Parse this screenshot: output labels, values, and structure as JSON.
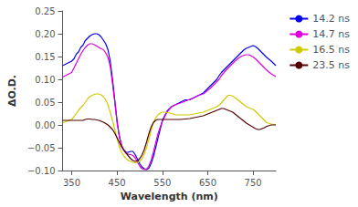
{
  "chart_data": {
    "type": "line",
    "xlabel": "Wavelength (nm)",
    "ylabel": "ΔO.D.",
    "xlim": [
      330,
      800
    ],
    "ylim": [
      -0.1,
      0.25
    ],
    "xticks": [
      350,
      450,
      550,
      650,
      750
    ],
    "yticks": [
      {
        "value": -0.1,
        "label": "−0.10"
      },
      {
        "value": -0.05,
        "label": "−0.05"
      },
      {
        "value": 0.0,
        "label": "0.00"
      },
      {
        "value": 0.05,
        "label": "0.05"
      },
      {
        "value": 0.1,
        "label": "0.10"
      },
      {
        "value": 0.15,
        "label": "0.15"
      },
      {
        "value": 0.2,
        "label": "0.20"
      },
      {
        "value": 0.25,
        "label": "0.25"
      }
    ],
    "grid": false,
    "legend": "upper right",
    "x": [
      330,
      340,
      350,
      355,
      360,
      365,
      370,
      375,
      380,
      385,
      390,
      395,
      400,
      405,
      410,
      415,
      420,
      425,
      430,
      435,
      440,
      445,
      450,
      455,
      460,
      465,
      470,
      475,
      480,
      485,
      490,
      495,
      500,
      505,
      510,
      515,
      520,
      525,
      530,
      535,
      540,
      545,
      550,
      555,
      560,
      565,
      570,
      580,
      590,
      600,
      610,
      620,
      630,
      640,
      645,
      650,
      655,
      660,
      665,
      670,
      675,
      680,
      685,
      690,
      695,
      700,
      705,
      710,
      715,
      720,
      725,
      730,
      735,
      740,
      745,
      750,
      755,
      760,
      765,
      770,
      775,
      780,
      790,
      800
    ],
    "series": [
      {
        "name": "14.2 ns",
        "color": "#0000EE",
        "values": [
          0.13,
          0.135,
          0.14,
          0.145,
          0.155,
          0.16,
          0.17,
          0.175,
          0.185,
          0.19,
          0.195,
          0.198,
          0.2,
          0.2,
          0.198,
          0.193,
          0.186,
          0.178,
          0.165,
          0.14,
          0.1,
          0.055,
          0.01,
          -0.025,
          -0.045,
          -0.055,
          -0.06,
          -0.06,
          -0.058,
          -0.058,
          -0.065,
          -0.075,
          -0.085,
          -0.092,
          -0.096,
          -0.098,
          -0.095,
          -0.085,
          -0.07,
          -0.05,
          -0.03,
          -0.01,
          0.01,
          0.02,
          0.03,
          0.035,
          0.04,
          0.045,
          0.05,
          0.055,
          0.055,
          0.06,
          0.065,
          0.07,
          0.075,
          0.08,
          0.085,
          0.09,
          0.095,
          0.1,
          0.108,
          0.115,
          0.12,
          0.125,
          0.13,
          0.135,
          0.14,
          0.145,
          0.15,
          0.155,
          0.16,
          0.165,
          0.168,
          0.17,
          0.172,
          0.174,
          0.172,
          0.168,
          0.163,
          0.158,
          0.153,
          0.148,
          0.14,
          0.13
        ]
      },
      {
        "name": "14.7 ns",
        "color": "#DD00DD",
        "values": [
          0.105,
          0.11,
          0.115,
          0.125,
          0.135,
          0.145,
          0.155,
          0.163,
          0.17,
          0.175,
          0.178,
          0.178,
          0.176,
          0.173,
          0.17,
          0.167,
          0.165,
          0.158,
          0.148,
          0.128,
          0.09,
          0.05,
          0.005,
          -0.025,
          -0.045,
          -0.056,
          -0.062,
          -0.064,
          -0.065,
          -0.067,
          -0.072,
          -0.082,
          -0.09,
          -0.096,
          -0.098,
          -0.097,
          -0.09,
          -0.078,
          -0.06,
          -0.04,
          -0.02,
          -0.005,
          0.008,
          0.018,
          0.028,
          0.034,
          0.04,
          0.045,
          0.048,
          0.052,
          0.056,
          0.06,
          0.065,
          0.068,
          0.072,
          0.076,
          0.08,
          0.085,
          0.09,
          0.095,
          0.1,
          0.108,
          0.114,
          0.12,
          0.125,
          0.13,
          0.135,
          0.14,
          0.144,
          0.148,
          0.151,
          0.153,
          0.154,
          0.154,
          0.152,
          0.149,
          0.145,
          0.14,
          0.135,
          0.13,
          0.125,
          0.12,
          0.112,
          0.106
        ]
      },
      {
        "name": "16.5 ns",
        "color": "#CCCC00",
        "values": [
          0.005,
          0.008,
          0.012,
          0.018,
          0.025,
          0.032,
          0.038,
          0.043,
          0.05,
          0.057,
          0.062,
          0.065,
          0.067,
          0.068,
          0.068,
          0.066,
          0.062,
          0.055,
          0.044,
          0.028,
          0.01,
          -0.01,
          -0.03,
          -0.048,
          -0.06,
          -0.068,
          -0.074,
          -0.078,
          -0.08,
          -0.082,
          -0.083,
          -0.082,
          -0.08,
          -0.074,
          -0.064,
          -0.05,
          -0.032,
          -0.012,
          0.004,
          0.015,
          0.022,
          0.026,
          0.028,
          0.028,
          0.027,
          0.026,
          0.025,
          0.022,
          0.022,
          0.022,
          0.022,
          0.024,
          0.026,
          0.028,
          0.03,
          0.032,
          0.034,
          0.036,
          0.038,
          0.04,
          0.044,
          0.048,
          0.054,
          0.06,
          0.065,
          0.065,
          0.063,
          0.06,
          0.056,
          0.052,
          0.048,
          0.044,
          0.04,
          0.038,
          0.036,
          0.034,
          0.03,
          0.025,
          0.02,
          0.015,
          0.01,
          0.005,
          0.002,
          0.001
        ]
      },
      {
        "name": "23.5 ns",
        "color": "#550000",
        "values": [
          0.01,
          0.01,
          0.01,
          0.01,
          0.01,
          0.01,
          0.01,
          0.01,
          0.012,
          0.013,
          0.013,
          0.012,
          0.012,
          0.011,
          0.01,
          0.008,
          0.006,
          0.003,
          0.0,
          -0.005,
          -0.01,
          -0.018,
          -0.028,
          -0.038,
          -0.048,
          -0.055,
          -0.062,
          -0.068,
          -0.074,
          -0.078,
          -0.08,
          -0.079,
          -0.074,
          -0.066,
          -0.054,
          -0.038,
          -0.02,
          -0.005,
          0.005,
          0.01,
          0.012,
          0.012,
          0.012,
          0.012,
          0.012,
          0.012,
          0.012,
          0.012,
          0.012,
          0.013,
          0.014,
          0.016,
          0.018,
          0.02,
          0.022,
          0.024,
          0.026,
          0.028,
          0.03,
          0.032,
          0.034,
          0.036,
          0.036,
          0.034,
          0.032,
          0.03,
          0.028,
          0.024,
          0.02,
          0.016,
          0.012,
          0.008,
          0.004,
          0.001,
          -0.002,
          -0.005,
          -0.008,
          -0.01,
          -0.01,
          -0.008,
          -0.006,
          -0.003,
          0.0,
          0.0
        ]
      }
    ]
  }
}
